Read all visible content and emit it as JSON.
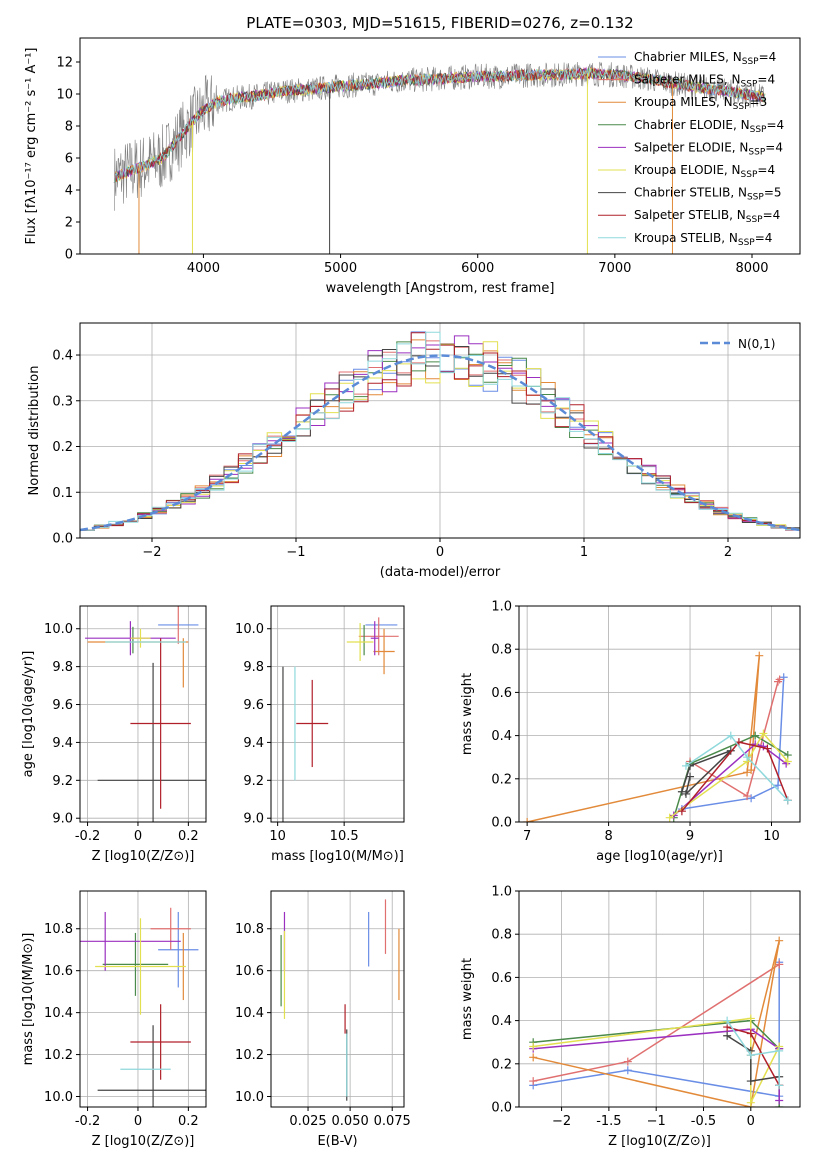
{
  "title": "PLATE=0303, MJD=51615, FIBERID=0276, z=0.132",
  "model_colors": {
    "Chabrier MILES": "#6a8ee6",
    "Salpeter MILES": "#e07070",
    "Kroupa MILES": "#e28a3a",
    "Chabrier ELODIE": "#4a8a4a",
    "Salpeter ELODIE": "#9b30c0",
    "Kroupa ELODIE": "#e3e050",
    "Chabrier STELIB": "#444444",
    "Salpeter STELIB": "#b0202a",
    "Kroupa STELIB": "#8fd8dc"
  },
  "chart_data": [
    {
      "id": "spectrum",
      "type": "line",
      "xlabel": "wavelength [Angstrom, rest frame]",
      "ylabel": "Flux [fλ10⁻¹⁷ erg cm⁻² s⁻¹ A⁻¹]",
      "xlim": [
        3100,
        8350
      ],
      "ylim": [
        0,
        13.5
      ],
      "xticks": [
        4000,
        5000,
        6000,
        7000,
        8000
      ],
      "yticks": [
        0,
        2,
        4,
        6,
        8,
        10,
        12
      ],
      "data_color": "#808080",
      "data_anchors": {
        "x": [
          3350,
          3500,
          3600,
          3700,
          3800,
          3900,
          4000,
          4100,
          4200,
          4400,
          4600,
          4800,
          5000,
          5200,
          5400,
          5600,
          5800,
          6000,
          6200,
          6400,
          6600,
          6800,
          7000,
          7200,
          7400,
          7600,
          7800,
          8000,
          8100
        ],
        "y": [
          4.8,
          5.3,
          5.6,
          6.0,
          7.0,
          8.1,
          9.0,
          9.5,
          9.7,
          9.9,
          10.2,
          10.3,
          10.5,
          10.6,
          10.8,
          10.9,
          11.0,
          11.1,
          11.1,
          11.2,
          11.2,
          11.3,
          11.2,
          11.0,
          10.7,
          10.4,
          10.2,
          9.9,
          9.8
        ]
      },
      "model_spikes": [
        {
          "x": 3530,
          "model": "Kroupa MILES"
        },
        {
          "x": 3920,
          "model": "Kroupa ELODIE"
        },
        {
          "x": 6800,
          "model": "Kroupa ELODIE"
        },
        {
          "x": 7420,
          "model": "Kroupa MILES"
        },
        {
          "x": 4920,
          "model": "Chabrier STELIB"
        }
      ],
      "legend": [
        "Chabrier MILES, N_SSP=4",
        "Salpeter MILES, N_SSP=4",
        "Kroupa MILES, N_SSP=3",
        "Chabrier ELODIE, N_SSP=4",
        "Salpeter ELODIE, N_SSP=4",
        "Kroupa ELODIE, N_SSP=4",
        "Chabrier STELIB, N_SSP=5",
        "Salpeter STELIB, N_SSP=4",
        "Kroupa STELIB, N_SSP=4"
      ],
      "legend_placement": "upper right"
    },
    {
      "id": "residuals",
      "type": "area",
      "xlabel": "(data-model)/error",
      "ylabel": "Normed distribution",
      "xlim": [
        -2.5,
        2.5
      ],
      "ylim": [
        0,
        0.47
      ],
      "xticks": [
        -2,
        -1,
        0,
        1,
        2
      ],
      "yticks": [
        0.0,
        0.1,
        0.2,
        0.3,
        0.4
      ],
      "bin_width": 0.1,
      "bin_start": -2.5,
      "grid": true,
      "gaussian_label": "N(0,1)",
      "gaussian_color": "#5b8ad6",
      "legend_placement": "upper right"
    },
    {
      "id": "age_vs_Z",
      "type": "scatter",
      "xlabel": "Z [log10(Z/Z⊙)]",
      "ylabel": "age  [log10(age/yr)]",
      "xlim": [
        -0.23,
        0.27
      ],
      "ylim": [
        8.98,
        10.12
      ],
      "xticks": [
        -0.2,
        0.0,
        0.2
      ],
      "yticks": [
        9.0,
        9.2,
        9.4,
        9.6,
        9.8,
        10.0
      ],
      "grid": true,
      "points": [
        {
          "x": 0.16,
          "y": 10.02,
          "xe": 0.08,
          "ye": 0.0,
          "model": "Chabrier MILES"
        },
        {
          "x": 0.16,
          "y": 10.02,
          "xe": 0.0,
          "ye": 0.1,
          "model": "Salpeter MILES"
        },
        {
          "x": 0.18,
          "y": 9.82,
          "xe": 0.0,
          "ye": 0.13,
          "model": "Kroupa MILES"
        },
        {
          "x": 0.0,
          "y": 9.93,
          "xe": 0.2,
          "ye": 0.0,
          "model": "Kroupa MILES"
        },
        {
          "x": -0.02,
          "y": 9.94,
          "xe": 0.0,
          "ye": 0.07,
          "model": "Chabrier ELODIE"
        },
        {
          "x": -0.03,
          "y": 9.95,
          "xe": 0.18,
          "ye": 0.09,
          "model": "Salpeter ELODIE"
        },
        {
          "x": 0.01,
          "y": 9.95,
          "xe": 0.04,
          "ye": 0.05,
          "model": "Kroupa ELODIE"
        },
        {
          "x": 0.06,
          "y": 9.2,
          "xe": 0.22,
          "ye": 0.62,
          "model": "Chabrier STELIB"
        },
        {
          "x": 0.09,
          "y": 9.5,
          "xe": 0.12,
          "ye": 0.45,
          "model": "Salpeter STELIB"
        },
        {
          "x": 0.03,
          "y": 9.93,
          "xe": 0.16,
          "ye": 0.0,
          "model": "Kroupa STELIB"
        }
      ]
    },
    {
      "id": "age_vs_mass",
      "type": "scatter",
      "xlabel": "mass [log10(M/M⊙)]",
      "ylabel": "",
      "xlim": [
        9.95,
        10.95
      ],
      "ylim": [
        8.98,
        10.12
      ],
      "xticks": [
        10.0,
        10.5
      ],
      "yticks": [
        9.0,
        9.2,
        9.4,
        9.6,
        9.8,
        10.0
      ],
      "grid": true,
      "points": [
        {
          "x": 10.78,
          "y": 10.02,
          "xe": 0.12,
          "ye": 0.0,
          "model": "Chabrier MILES"
        },
        {
          "x": 10.76,
          "y": 9.96,
          "xe": 0.15,
          "ye": 0.1,
          "model": "Salpeter MILES"
        },
        {
          "x": 10.8,
          "y": 9.88,
          "xe": 0.08,
          "ye": 0.12,
          "model": "Kroupa MILES"
        },
        {
          "x": 10.65,
          "y": 9.94,
          "xe": 0.0,
          "ye": 0.08,
          "model": "Chabrier ELODIE"
        },
        {
          "x": 10.73,
          "y": 9.95,
          "xe": 0.03,
          "ye": 0.09,
          "model": "Salpeter ELODIE"
        },
        {
          "x": 10.62,
          "y": 9.93,
          "xe": 0.1,
          "ye": 0.1,
          "model": "Kroupa ELODIE"
        },
        {
          "x": 10.04,
          "y": 9.2,
          "xe": 0.0,
          "ye": 0.6,
          "model": "Chabrier STELIB"
        },
        {
          "x": 10.26,
          "y": 9.5,
          "xe": 0.12,
          "ye": 0.23,
          "model": "Salpeter STELIB"
        },
        {
          "x": 10.13,
          "y": 9.5,
          "xe": 0.0,
          "ye": 0.3,
          "model": "Kroupa STELIB"
        }
      ]
    },
    {
      "id": "massweight_vs_age",
      "type": "line",
      "xlabel": "age  [log10(age/yr)]",
      "ylabel": "mass weight",
      "xlim": [
        6.9,
        10.35
      ],
      "ylim": [
        0,
        1.0
      ],
      "xticks": [
        7,
        8,
        9,
        10
      ],
      "yticks": [
        0.0,
        0.2,
        0.4,
        0.6,
        0.8,
        1.0
      ],
      "grid": true,
      "series": [
        {
          "model": "Chabrier MILES",
          "x": [
            8.9,
            9.75,
            10.08,
            10.15
          ],
          "y": [
            0.06,
            0.11,
            0.17,
            0.67
          ]
        },
        {
          "model": "Salpeter MILES",
          "x": [
            9.0,
            9.7,
            10.08,
            10.1
          ],
          "y": [
            0.28,
            0.12,
            0.65,
            0.66
          ]
        },
        {
          "model": "Kroupa MILES",
          "x": [
            7.0,
            9.7,
            9.85,
            9.75
          ],
          "y": [
            0.0,
            0.23,
            0.77,
            0.24
          ]
        },
        {
          "model": "Chabrier ELODIE",
          "x": [
            8.8,
            9.0,
            9.8,
            10.2
          ],
          "y": [
            0.02,
            0.27,
            0.4,
            0.31
          ]
        },
        {
          "model": "Salpeter ELODIE",
          "x": [
            8.8,
            9.8,
            9.9,
            10.18
          ],
          "y": [
            0.03,
            0.36,
            0.35,
            0.27
          ]
        },
        {
          "model": "Kroupa ELODIE",
          "x": [
            8.75,
            9.7,
            9.9,
            10.2
          ],
          "y": [
            0.02,
            0.28,
            0.41,
            0.28
          ]
        },
        {
          "model": "Chabrier STELIB",
          "x": [
            8.9,
            9.0,
            9.5,
            8.95,
            9.0
          ],
          "y": [
            0.14,
            0.26,
            0.33,
            0.13,
            0.21
          ]
        },
        {
          "model": "Salpeter STELIB",
          "x": [
            8.9,
            9.6,
            9.95,
            10.2
          ],
          "y": [
            0.05,
            0.37,
            0.34,
            0.1
          ]
        },
        {
          "model": "Kroupa STELIB",
          "x": [
            8.95,
            9.5,
            9.7,
            10.2
          ],
          "y": [
            0.26,
            0.4,
            0.3,
            0.1
          ]
        }
      ]
    },
    {
      "id": "mass_vs_Z",
      "type": "scatter",
      "xlabel": "Z [log10(Z/Z⊙)]",
      "ylabel": "mass [log10(M/M⊙)]",
      "xlim": [
        -0.23,
        0.27
      ],
      "ylim": [
        9.95,
        10.98
      ],
      "xticks": [
        -0.2,
        0.0,
        0.2
      ],
      "yticks": [
        10.0,
        10.2,
        10.4,
        10.6,
        10.8
      ],
      "grid": true,
      "points": [
        {
          "x": 0.16,
          "y": 10.7,
          "xe": 0.08,
          "ye": 0.18,
          "model": "Chabrier MILES"
        },
        {
          "x": 0.13,
          "y": 10.8,
          "xe": 0.08,
          "ye": 0.1,
          "model": "Salpeter MILES"
        },
        {
          "x": 0.18,
          "y": 10.62,
          "xe": 0.0,
          "ye": 0.16,
          "model": "Kroupa MILES"
        },
        {
          "x": -0.01,
          "y": 10.63,
          "xe": 0.13,
          "ye": 0.15,
          "model": "Chabrier ELODIE"
        },
        {
          "x": -0.13,
          "y": 10.74,
          "xe": 0.3,
          "ye": 0.14,
          "model": "Salpeter ELODIE"
        },
        {
          "x": 0.01,
          "y": 10.62,
          "xe": 0.18,
          "ye": 0.23,
          "model": "Kroupa ELODIE"
        },
        {
          "x": 0.06,
          "y": 10.03,
          "xe": 0.22,
          "ye": 0.31,
          "model": "Chabrier STELIB"
        },
        {
          "x": 0.09,
          "y": 10.26,
          "xe": 0.12,
          "ye": 0.18,
          "model": "Salpeter STELIB"
        },
        {
          "x": 0.03,
          "y": 10.13,
          "xe": 0.1,
          "ye": 0.0,
          "model": "Kroupa STELIB"
        }
      ]
    },
    {
      "id": "mass_vs_EBV",
      "type": "scatter",
      "xlabel": "E(B-V)",
      "ylabel": "",
      "xlim": [
        0.003,
        0.082
      ],
      "ylim": [
        9.95,
        10.98
      ],
      "xticks": [
        0.025,
        0.05,
        0.075
      ],
      "tick_labels": [
        "0.025",
        "0.050",
        "0.075"
      ],
      "yticks": [
        10.0,
        10.2,
        10.4,
        10.6,
        10.8
      ],
      "grid": true,
      "points": [
        {
          "x": 0.061,
          "y": 10.75,
          "xe": 0.0,
          "ye": 0.13,
          "model": "Chabrier MILES"
        },
        {
          "x": 0.071,
          "y": 10.81,
          "xe": 0.0,
          "ye": 0.13,
          "model": "Salpeter MILES"
        },
        {
          "x": 0.079,
          "y": 10.63,
          "xe": 0.0,
          "ye": 0.17,
          "model": "Kroupa MILES"
        },
        {
          "x": 0.009,
          "y": 10.6,
          "xe": 0.0,
          "ye": 0.17,
          "model": "Chabrier ELODIE"
        },
        {
          "x": 0.011,
          "y": 10.74,
          "xe": 0.0,
          "ye": 0.14,
          "model": "Salpeter ELODIE"
        },
        {
          "x": 0.011,
          "y": 10.58,
          "xe": 0.0,
          "ye": 0.21,
          "model": "Kroupa ELODIE"
        },
        {
          "x": 0.048,
          "y": 10.15,
          "xe": 0.0,
          "ye": 0.17,
          "model": "Chabrier STELIB"
        },
        {
          "x": 0.047,
          "y": 10.37,
          "xe": 0.0,
          "ye": 0.07,
          "model": "Salpeter STELIB"
        },
        {
          "x": 0.048,
          "y": 10.15,
          "xe": 0.0,
          "ye": 0.15,
          "model": "Kroupa STELIB"
        }
      ]
    },
    {
      "id": "massweight_vs_Z",
      "type": "line",
      "xlabel": "Z [log10(Z/Z⊙)]",
      "ylabel": "mass weight",
      "xlim": [
        -2.45,
        0.52
      ],
      "ylim": [
        0,
        1.0
      ],
      "xticks": [
        -2.0,
        -1.5,
        -1.0,
        -0.5,
        0.0
      ],
      "yticks": [
        0.0,
        0.2,
        0.4,
        0.6,
        0.8,
        1.0
      ],
      "grid": true,
      "series": [
        {
          "model": "Chabrier MILES",
          "x": [
            -2.3,
            -1.3,
            0.3,
            0.3
          ],
          "y": [
            0.1,
            0.17,
            0.05,
            0.67
          ]
        },
        {
          "model": "Salpeter MILES",
          "x": [
            -2.3,
            -1.3,
            0.3,
            0.3
          ],
          "y": [
            0.12,
            0.21,
            0.66,
            0.66
          ]
        },
        {
          "model": "Kroupa MILES",
          "x": [
            -2.3,
            0.0,
            0.3,
            0.0
          ],
          "y": [
            0.23,
            0.0,
            0.77,
            0.24
          ]
        },
        {
          "model": "Chabrier ELODIE",
          "x": [
            -2.3,
            0.0,
            0.3,
            0.3
          ],
          "y": [
            0.3,
            0.4,
            0.27,
            0.0
          ]
        },
        {
          "model": "Salpeter ELODIE",
          "x": [
            -2.3,
            0.0,
            0.3,
            0.3
          ],
          "y": [
            0.27,
            0.36,
            0.27,
            0.03
          ]
        },
        {
          "model": "Kroupa ELODIE",
          "x": [
            -2.3,
            0.0,
            0.0,
            0.3
          ],
          "y": [
            0.28,
            0.41,
            0.02,
            0.28
          ]
        },
        {
          "model": "Chabrier STELIB",
          "x": [
            -0.25,
            0.0,
            0.0,
            0.3
          ],
          "y": [
            0.33,
            0.26,
            0.12,
            0.14
          ]
        },
        {
          "model": "Salpeter STELIB",
          "x": [
            -0.25,
            0.0,
            0.3,
            0.3
          ],
          "y": [
            0.37,
            0.34,
            0.1,
            0.1
          ]
        },
        {
          "model": "Kroupa STELIB",
          "x": [
            -0.25,
            0.0,
            0.3,
            0.3
          ],
          "y": [
            0.4,
            0.24,
            0.26,
            0.1
          ]
        }
      ]
    }
  ]
}
